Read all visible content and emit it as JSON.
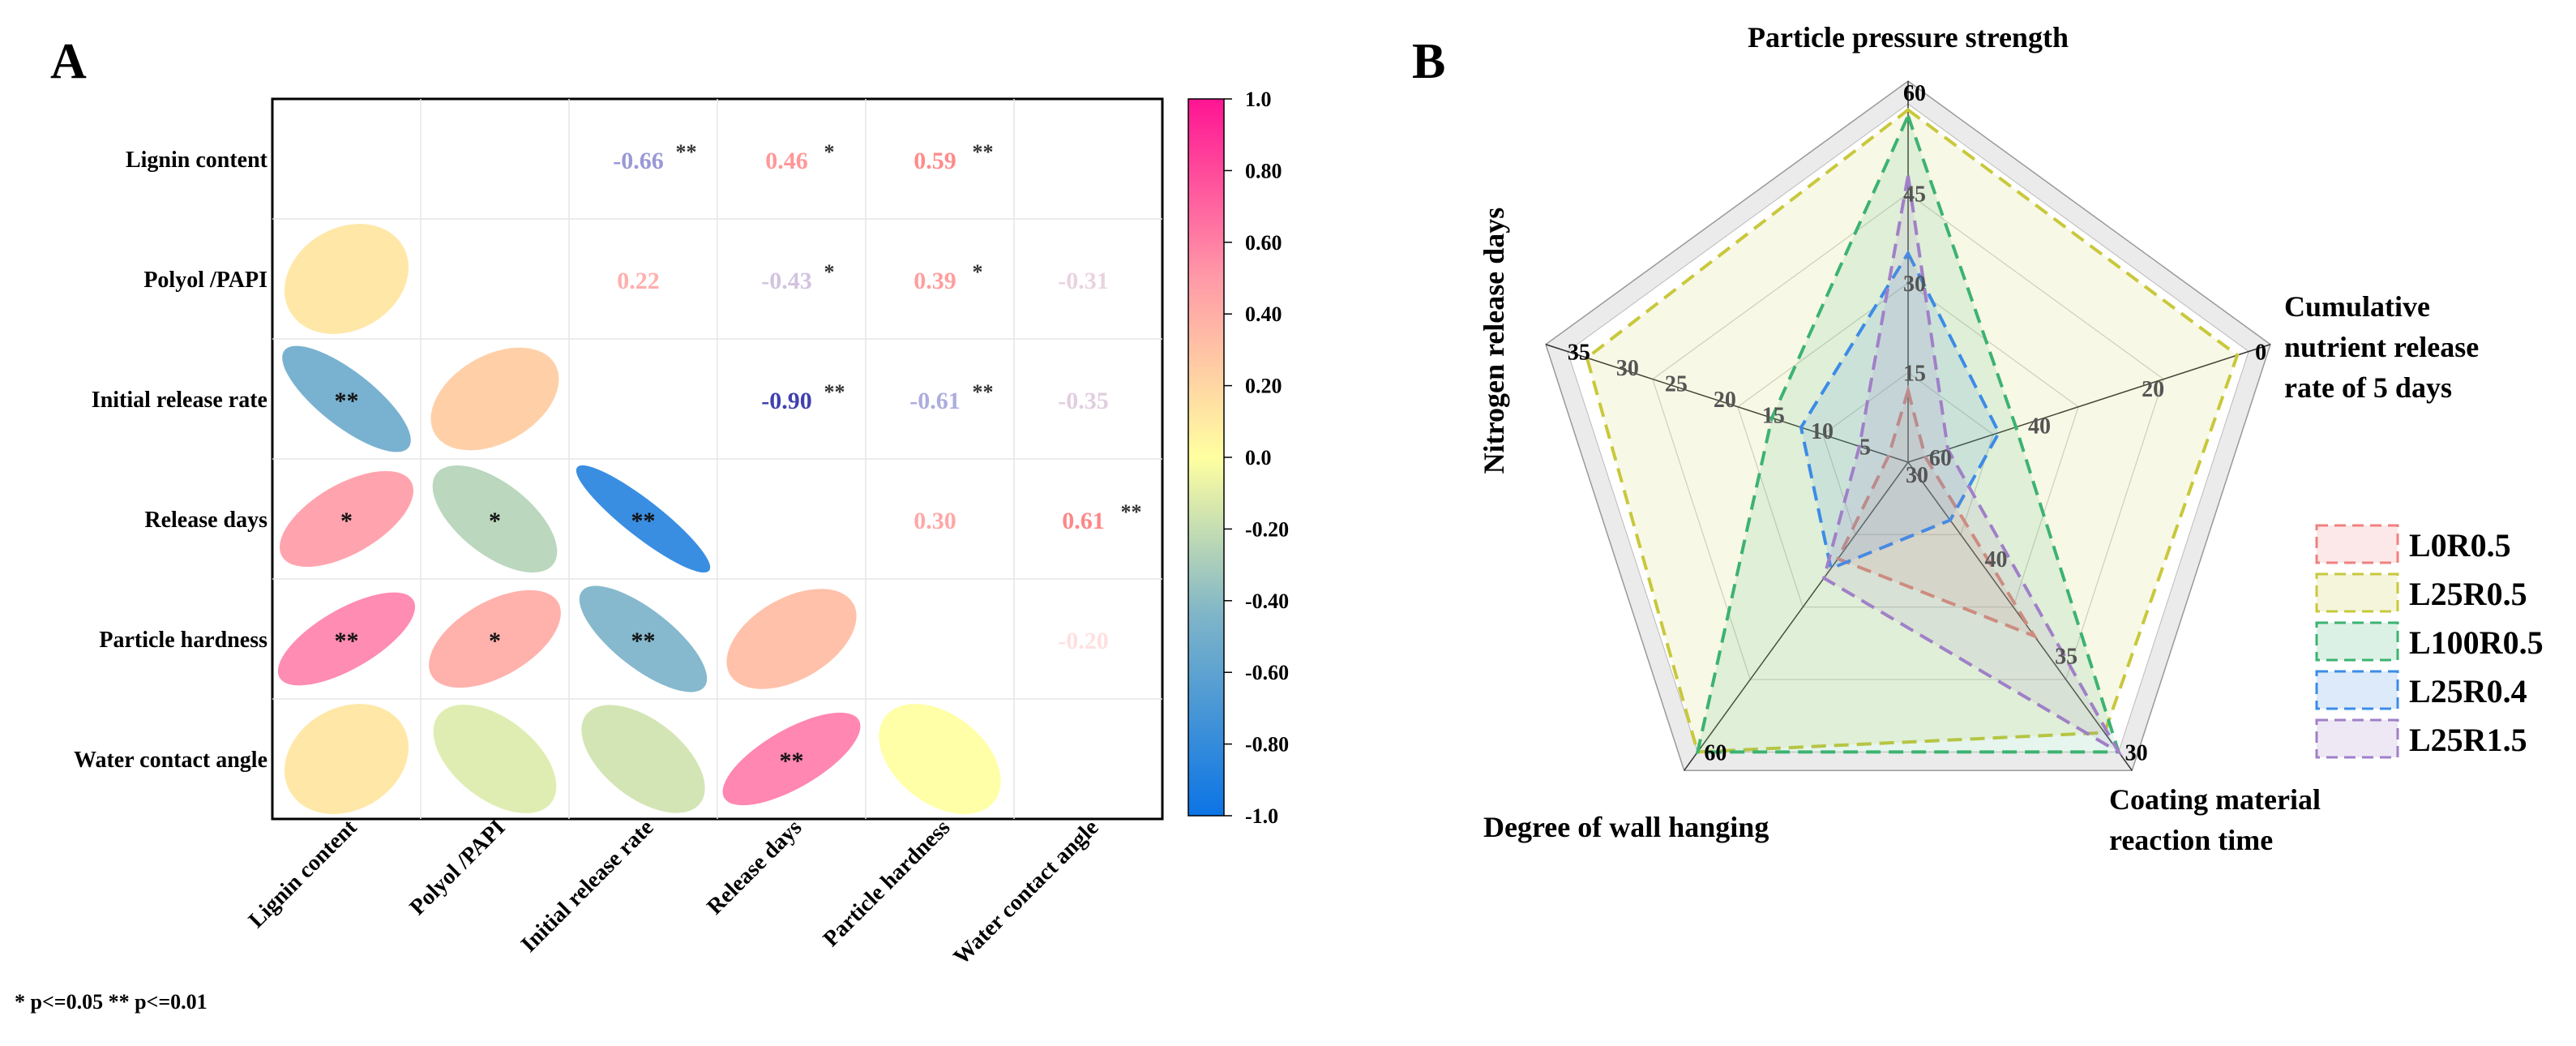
{
  "panel_a_label": "A",
  "panel_b_label": "B",
  "significance_note": "* p<=0.05  ** p<=0.01",
  "chart_data": [
    {
      "type": "heatmap",
      "subtype": "correlation-matrix",
      "variables": [
        "Lignin content",
        "Polyol /PAPI",
        "Initial release rate",
        "Release days",
        "Particle hardness",
        "Water contact angle"
      ],
      "upper_values": [
        {
          "row": 0,
          "col": 2,
          "value": -0.66,
          "label": "-0.66",
          "sig": "**"
        },
        {
          "row": 0,
          "col": 3,
          "value": 0.46,
          "label": "0.46",
          "sig": "*"
        },
        {
          "row": 0,
          "col": 4,
          "value": 0.59,
          "label": "0.59",
          "sig": "**"
        },
        {
          "row": 1,
          "col": 2,
          "value": 0.22,
          "label": "0.22",
          "sig": ""
        },
        {
          "row": 1,
          "col": 3,
          "value": -0.43,
          "label": "-0.43",
          "sig": "*"
        },
        {
          "row": 1,
          "col": 4,
          "value": 0.39,
          "label": "0.39",
          "sig": "*"
        },
        {
          "row": 1,
          "col": 5,
          "value": -0.31,
          "label": "-0.31",
          "sig": ""
        },
        {
          "row": 2,
          "col": 3,
          "value": -0.9,
          "label": "-0.90",
          "sig": "**"
        },
        {
          "row": 2,
          "col": 4,
          "value": -0.61,
          "label": "-0.61",
          "sig": "**"
        },
        {
          "row": 2,
          "col": 5,
          "value": -0.35,
          "label": "-0.35",
          "sig": ""
        },
        {
          "row": 3,
          "col": 4,
          "value": 0.3,
          "label": "0.30",
          "sig": ""
        },
        {
          "row": 3,
          "col": 5,
          "value": 0.61,
          "label": "0.61",
          "sig": "**"
        },
        {
          "row": 4,
          "col": 5,
          "value": -0.2,
          "label": "-0.20",
          "sig": ""
        }
      ],
      "lower_ellipses": [
        {
          "row": 1,
          "col": 0,
          "value": 0.02,
          "sig": ""
        },
        {
          "row": 2,
          "col": 0,
          "value": -0.66,
          "sig": "**"
        },
        {
          "row": 2,
          "col": 1,
          "value": 0.22,
          "sig": ""
        },
        {
          "row": 3,
          "col": 0,
          "value": 0.46,
          "sig": "*"
        },
        {
          "row": 3,
          "col": 1,
          "value": -0.43,
          "sig": "*"
        },
        {
          "row": 3,
          "col": 2,
          "value": -0.9,
          "sig": "**"
        },
        {
          "row": 4,
          "col": 0,
          "value": 0.59,
          "sig": "**"
        },
        {
          "row": 4,
          "col": 1,
          "value": 0.39,
          "sig": "*"
        },
        {
          "row": 4,
          "col": 2,
          "value": -0.61,
          "sig": "**"
        },
        {
          "row": 4,
          "col": 3,
          "value": 0.3,
          "sig": ""
        },
        {
          "row": 5,
          "col": 0,
          "value": 0.02,
          "sig": ""
        },
        {
          "row": 5,
          "col": 1,
          "value": -0.31,
          "sig": ""
        },
        {
          "row": 5,
          "col": 2,
          "value": -0.35,
          "sig": ""
        },
        {
          "row": 5,
          "col": 3,
          "value": 0.61,
          "sig": "**"
        },
        {
          "row": 5,
          "col": 4,
          "value": -0.2,
          "sig": ""
        }
      ],
      "colorbar": {
        "range": [
          -1.0,
          1.0
        ],
        "ticks": [
          "1.0",
          "0.80",
          "0.60",
          "0.40",
          "0.20",
          "0.0",
          "-0.20",
          "-0.40",
          "-0.60",
          "-0.80",
          "-1.0"
        ],
        "colors": [
          "#ff1493",
          "#ff80ab",
          "#ffd0a0",
          "#ffffa0",
          "#7fb5c8",
          "#0b74e5"
        ]
      }
    },
    {
      "type": "radar",
      "axes": [
        {
          "name": "Particle pressure strength",
          "range": [
            0,
            60
          ],
          "ticks": [
            "15",
            "30",
            "45",
            "60"
          ]
        },
        {
          "name": "Cumulative nutrient release rate of 5 days",
          "name_lines": [
            "Cumulative",
            "nutrient release",
            "rate of 5 days"
          ],
          "range": [
            60,
            0
          ],
          "ticks": [
            "60",
            "40",
            "20",
            "0"
          ]
        },
        {
          "name": "Coating material reaction time",
          "name_lines": [
            "Coating material",
            "reaction time"
          ],
          "range": [
            45,
            30
          ],
          "ticks": [
            "40",
            "35",
            "30"
          ]
        },
        {
          "name": "Degree of wall hanging",
          "range": [
            30,
            60
          ],
          "ticks": [
            "30",
            "60"
          ]
        },
        {
          "name": "Nitrogen release days",
          "range": [
            0,
            35
          ],
          "ticks": [
            "5",
            "10",
            "15",
            "20",
            "25",
            "30",
            "35"
          ]
        }
      ],
      "series": [
        {
          "name": "L0R0.5",
          "color": "#f08080",
          "values": [
            12,
            57,
            36,
            40,
            2
          ]
        },
        {
          "name": "L25R0.5",
          "color": "#c8c83c",
          "values": [
            59,
            2,
            31,
            60,
            33
          ]
        },
        {
          "name": "L100R0.5",
          "color": "#3cb371",
          "values": [
            58,
            41,
            30,
            60,
            14
          ]
        },
        {
          "name": "L25R0.4",
          "color": "#3c8ce6",
          "values": [
            35,
            44,
            42,
            41,
            11
          ]
        },
        {
          "name": "L25R1.5",
          "color": "#a080c8",
          "values": [
            48,
            53,
            30,
            42,
            5
          ]
        }
      ]
    }
  ]
}
